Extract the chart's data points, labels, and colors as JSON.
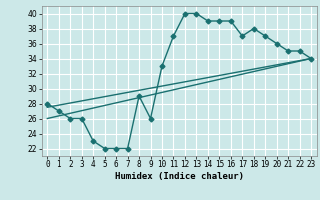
{
  "xlabel": "Humidex (Indice chaleur)",
  "ylabel": "",
  "bg_color": "#cce8e8",
  "line_color": "#1a7070",
  "grid_color": "#ffffff",
  "xlim": [
    -0.5,
    23.5
  ],
  "ylim": [
    21,
    41
  ],
  "yticks": [
    22,
    24,
    26,
    28,
    30,
    32,
    34,
    36,
    38,
    40
  ],
  "xticks": [
    0,
    1,
    2,
    3,
    4,
    5,
    6,
    7,
    8,
    9,
    10,
    11,
    12,
    13,
    14,
    15,
    16,
    17,
    18,
    19,
    20,
    21,
    22,
    23
  ],
  "line1_x": [
    0,
    1,
    2,
    3,
    4,
    5,
    6,
    7,
    8,
    9,
    10,
    11,
    12,
    13,
    14,
    15,
    16,
    17,
    18,
    19,
    20,
    21,
    22,
    23
  ],
  "line1_y": [
    28,
    27,
    26,
    26,
    23,
    22,
    22,
    22,
    29,
    26,
    33,
    37,
    40,
    40,
    39,
    39,
    39,
    37,
    38,
    37,
    36,
    35,
    35,
    34
  ],
  "line2_x": [
    0,
    23
  ],
  "line2_y": [
    26,
    34
  ],
  "line3_x": [
    0,
    23
  ],
  "line3_y": [
    27.5,
    34
  ],
  "marker": "D",
  "markersize": 2.5,
  "linewidth": 1.0,
  "label_fontsize": 6.5,
  "tick_fontsize": 5.5
}
